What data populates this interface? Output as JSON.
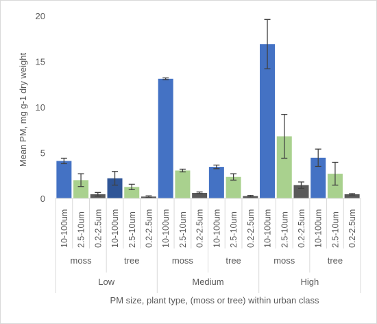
{
  "chart_data": {
    "type": "bar",
    "xlabel": "PM size, plant type, (moss or tree) within urban class",
    "ylabel": "Mean PM, mg g-1 dry weight",
    "ylim": [
      0,
      20
    ],
    "y_ticks": [
      "0",
      "5",
      "10",
      "15",
      "20"
    ],
    "urban_classes": [
      "Low",
      "Medium",
      "High"
    ],
    "plant_types": [
      "moss",
      "tree"
    ],
    "pm_sizes": [
      "10-100um",
      "2.5-10um",
      "0.2-2.5um"
    ],
    "grid": false,
    "legend": "none",
    "colors": {
      "10-100um": "#4472c4",
      "10-100um_low_tree": "#2f5597",
      "2.5-10um": "#a9d18e",
      "0.2-2.5um": "#595959",
      "error_bar": "#404040",
      "axis": "#d9d9d9"
    },
    "bars": [
      {
        "urban": "Low",
        "plant": "moss",
        "size": "10-100um",
        "value": 4.1,
        "err": 0.3
      },
      {
        "urban": "Low",
        "plant": "moss",
        "size": "2.5-10um",
        "value": 2.0,
        "err": 0.7
      },
      {
        "urban": "Low",
        "plant": "moss",
        "size": "0.2-2.5um",
        "value": 0.45,
        "err": 0.2
      },
      {
        "urban": "Low",
        "plant": "tree",
        "size": "10-100um",
        "value": 2.2,
        "err": 0.75
      },
      {
        "urban": "Low",
        "plant": "tree",
        "size": "2.5-10um",
        "value": 1.25,
        "err": 0.3
      },
      {
        "urban": "Low",
        "plant": "tree",
        "size": "0.2-2.5um",
        "value": 0.2,
        "err": 0.08
      },
      {
        "urban": "Medium",
        "plant": "moss",
        "size": "10-100um",
        "value": 13.1,
        "err": 0.1
      },
      {
        "urban": "Medium",
        "plant": "moss",
        "size": "2.5-10um",
        "value": 3.05,
        "err": 0.15
      },
      {
        "urban": "Medium",
        "plant": "moss",
        "size": "0.2-2.5um",
        "value": 0.6,
        "err": 0.1
      },
      {
        "urban": "Medium",
        "plant": "tree",
        "size": "10-100um",
        "value": 3.45,
        "err": 0.2
      },
      {
        "urban": "Medium",
        "plant": "tree",
        "size": "2.5-10um",
        "value": 2.35,
        "err": 0.35
      },
      {
        "urban": "Medium",
        "plant": "tree",
        "size": "0.2-2.5um",
        "value": 0.25,
        "err": 0.08
      },
      {
        "urban": "High",
        "plant": "moss",
        "size": "10-100um",
        "value": 16.9,
        "err": 2.7
      },
      {
        "urban": "High",
        "plant": "moss",
        "size": "2.5-10um",
        "value": 6.8,
        "err": 2.4
      },
      {
        "urban": "High",
        "plant": "moss",
        "size": "0.2-2.5um",
        "value": 1.45,
        "err": 0.35
      },
      {
        "urban": "High",
        "plant": "tree",
        "size": "10-100um",
        "value": 4.45,
        "err": 0.95
      },
      {
        "urban": "High",
        "plant": "tree",
        "size": "2.5-10um",
        "value": 2.7,
        "err": 1.25
      },
      {
        "urban": "High",
        "plant": "tree",
        "size": "0.2-2.5um",
        "value": 0.45,
        "err": 0.08
      }
    ]
  }
}
